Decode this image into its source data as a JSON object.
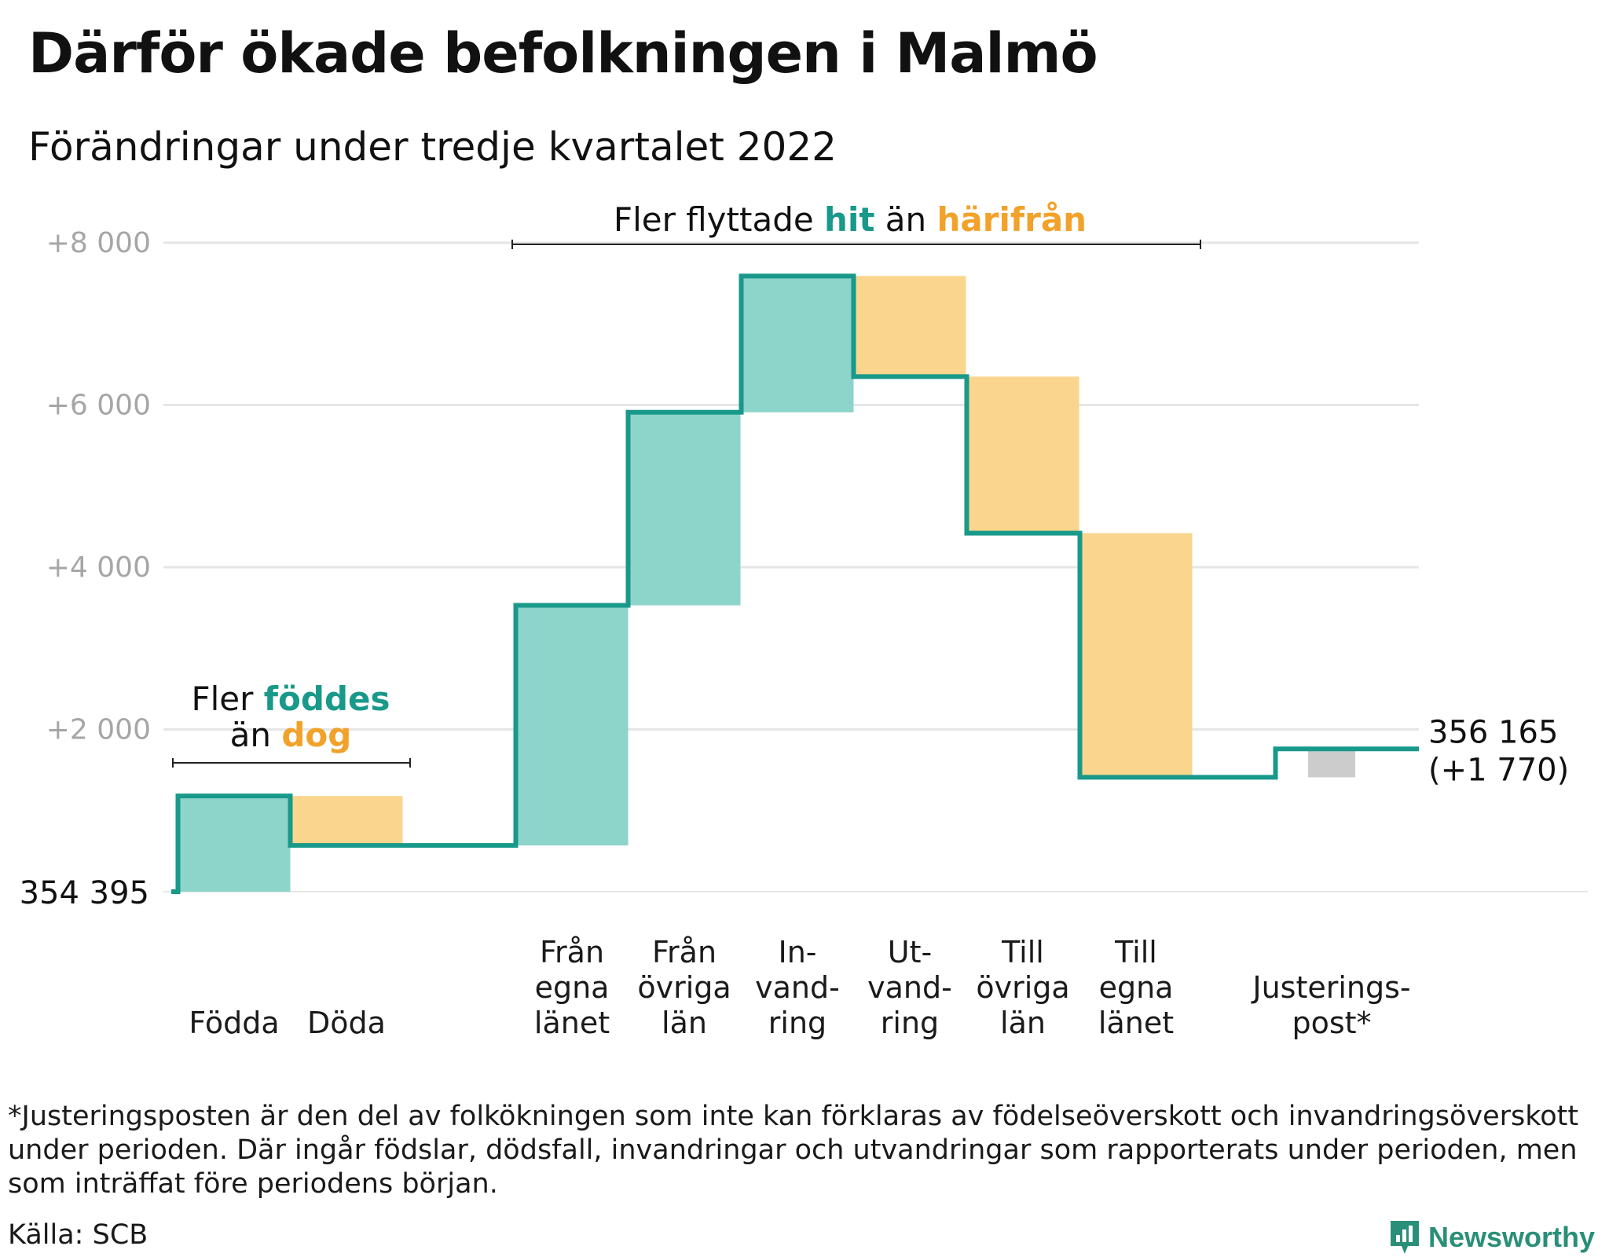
{
  "title": "Därför ökade befolkningen i Malmö",
  "subtitle": "Förändringar under tredje kvartalet 2022",
  "chart_data": {
    "type": "waterfall",
    "start_label": "354 395",
    "end_label": "356 165",
    "end_change_label": "(+1 770)",
    "y_ticks": [
      "+2 000",
      "+4 000",
      "+6 000",
      "+8 000"
    ],
    "ylim": [
      0,
      8000
    ],
    "steps": [
      {
        "label_lines": [
          "Födda"
        ],
        "change": 1180,
        "kind": "in"
      },
      {
        "label_lines": [
          "Döda"
        ],
        "change": -610,
        "kind": "out"
      },
      {
        "label_lines": [
          "Från",
          "egna",
          "länet"
        ],
        "change": 2960,
        "kind": "in"
      },
      {
        "label_lines": [
          "Från",
          "övriga",
          "län"
        ],
        "change": 2380,
        "kind": "in"
      },
      {
        "label_lines": [
          "In-",
          "vand-",
          "ring"
        ],
        "change": 1680,
        "kind": "in"
      },
      {
        "label_lines": [
          "Ut-",
          "vand-",
          "ring"
        ],
        "change": -1240,
        "kind": "out"
      },
      {
        "label_lines": [
          "Till",
          "övriga",
          "län"
        ],
        "change": -1930,
        "kind": "out"
      },
      {
        "label_lines": [
          "Till",
          "egna",
          "länet"
        ],
        "change": -3010,
        "kind": "out"
      },
      {
        "label_lines": [
          "Justerings-",
          "post*"
        ],
        "change": 350,
        "kind": "adjust"
      }
    ],
    "annotations": {
      "births": {
        "prefix": "Fler ",
        "highlight1": "föddes",
        "middle": "än ",
        "highlight2": "dog"
      },
      "migration": {
        "prefix": "Fler flyttade ",
        "highlight1": "hit",
        "middle": " än ",
        "highlight2": "härifrån"
      }
    },
    "colors": {
      "line": "#18998a",
      "in_fill": "#8dd4cb",
      "out_fill": "#fad58d",
      "adjust_fill": "#cccccc",
      "in_text": "#18998a",
      "out_text": "#f2a22a",
      "grid": "#e6e6e6",
      "tick_text": "#a6a6a6"
    }
  },
  "footnote": "*Justeringsposten är den del av folkökningen som inte kan förklaras av födelseöverskott och invandringsöverskott under perioden. Där ingår födslar, dödsfall, invandringar och utvandringar som rapporterats under perioden, men som inträffat före periodens början.",
  "source": "Källa: SCB",
  "brand": "Newsworthy"
}
